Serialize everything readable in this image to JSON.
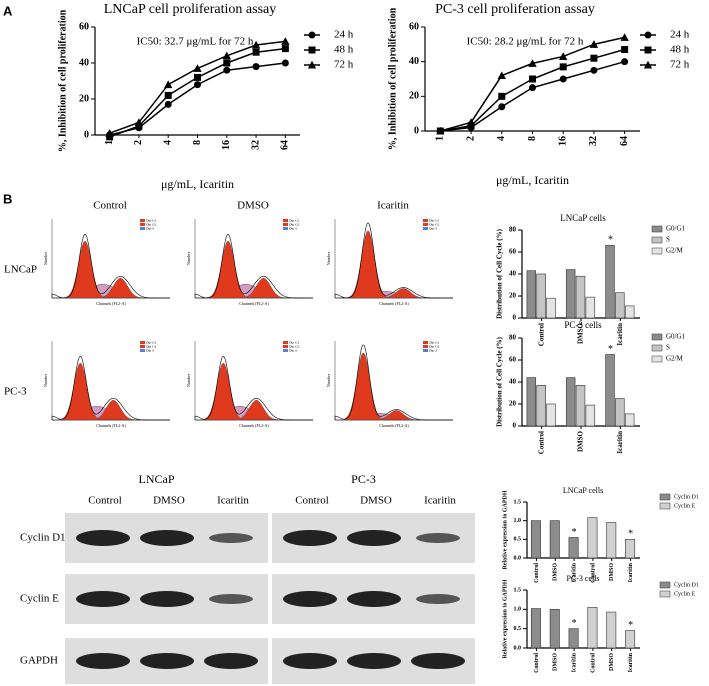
{
  "panel_labels": [
    "A",
    "B"
  ],
  "chart_data": [
    {
      "type": "line",
      "title": "LNCaP cell proliferation assay",
      "annotation": "IC50: 32.7 μg/mL for 72 h",
      "x_label": "μg/mL, Icaritin",
      "y_label": "%, Inhibition of cell proliferation",
      "categories": [
        "1",
        "2",
        "4",
        "8",
        "16",
        "32",
        "64"
      ],
      "ylim": [
        0,
        60
      ],
      "yticks": [
        0,
        20,
        40,
        60
      ],
      "series": [
        {
          "name": "24 h",
          "marker": "circle",
          "color": "#000000",
          "values": [
            0,
            4,
            17,
            28,
            36,
            38,
            40
          ]
        },
        {
          "name": "48 h",
          "marker": "square",
          "color": "#000000",
          "values": [
            -1,
            5,
            22,
            32,
            40,
            46,
            48
          ]
        },
        {
          "name": "72 h",
          "marker": "triangle",
          "color": "#000000",
          "values": [
            1,
            7,
            28,
            37,
            44,
            50,
            52
          ]
        }
      ]
    },
    {
      "type": "line",
      "title": "PC-3 cell proliferation assay",
      "annotation": "IC50: 28.2 μg/mL for 72 h",
      "x_label": "μg/mL, Icaritin",
      "y_label": "%, Inhibition of cell proliferation",
      "categories": [
        "1",
        "2",
        "4",
        "8",
        "16",
        "32",
        "64"
      ],
      "ylim": [
        0,
        60
      ],
      "yticks": [
        0,
        20,
        40,
        60
      ],
      "series": [
        {
          "name": "24 h",
          "marker": "circle",
          "color": "#000000",
          "values": [
            0,
            2,
            14,
            25,
            30,
            35,
            40
          ]
        },
        {
          "name": "48 h",
          "marker": "square",
          "color": "#000000",
          "values": [
            0,
            3,
            20,
            30,
            37,
            42,
            47
          ]
        },
        {
          "name": "72 h",
          "marker": "triangle",
          "color": "#000000",
          "values": [
            0,
            5,
            32,
            39,
            43,
            50,
            54
          ]
        }
      ]
    },
    {
      "type": "bar",
      "title": "LNCaP cells",
      "y_label": "Distribution of Cell Cycle (%)",
      "categories": [
        "Control",
        "DMSO",
        "Icaritin"
      ],
      "ylim": [
        0,
        80
      ],
      "yticks": [
        0,
        20,
        40,
        60,
        80
      ],
      "series": [
        {
          "name": "G0/G1",
          "color": "#8c8c8c",
          "values": [
            43,
            44,
            66
          ],
          "annotations": [
            null,
            null,
            "*"
          ]
        },
        {
          "name": "S",
          "color": "#c4c4c4",
          "values": [
            40,
            38,
            23
          ]
        },
        {
          "name": "G2/M",
          "color": "#e4e4e4",
          "values": [
            18,
            19,
            11
          ]
        }
      ]
    },
    {
      "type": "bar",
      "title": "PC-3 cells",
      "y_label": "Distribution of Cell Cycle (%)",
      "categories": [
        "Control",
        "DMSO",
        "Icaritin"
      ],
      "ylim": [
        0,
        80
      ],
      "yticks": [
        0,
        20,
        40,
        60,
        80
      ],
      "series": [
        {
          "name": "G0/G1",
          "color": "#8c8c8c",
          "values": [
            44,
            44,
            65
          ],
          "annotations": [
            null,
            null,
            "*"
          ]
        },
        {
          "name": "S",
          "color": "#c4c4c4",
          "values": [
            37,
            37,
            25
          ]
        },
        {
          "name": "G2/M",
          "color": "#e4e4e4",
          "values": [
            20,
            19,
            11
          ]
        }
      ]
    },
    {
      "type": "bar",
      "title": "LNCaP cells",
      "y_label": "Relative expression to GAPDH",
      "categories": [
        "Control",
        "DMSO",
        "Icaritin",
        "Control",
        "DMSO",
        "Icaritin"
      ],
      "ylim": [
        0,
        1.5
      ],
      "yticks": [
        {
          "value": 0,
          "label": "0.0"
        },
        0.5,
        {
          "value": 1,
          "label": "1.0"
        },
        1.5
      ],
      "series": [
        {
          "name": "Cyclin D1",
          "color": "#8c8c8c",
          "values": [
            1.0,
            1.0,
            0.55,
            null,
            null,
            null
          ],
          "annotations": [
            null,
            null,
            "*",
            null,
            null,
            null
          ]
        },
        {
          "name": "Cyclin E",
          "color": "#d0d0d0",
          "values": [
            null,
            null,
            null,
            1.08,
            0.95,
            0.5
          ],
          "annotations": [
            null,
            null,
            null,
            null,
            null,
            "*"
          ]
        }
      ]
    },
    {
      "type": "bar",
      "title": "PC-3 cells",
      "y_label": "Relative expression to GAPDH",
      "categories": [
        "Control",
        "DMSO",
        "Icaritin",
        "Control",
        "DMSO",
        "Icaritin"
      ],
      "ylim": [
        0,
        1.5
      ],
      "yticks": [
        {
          "value": 0,
          "label": "0.0"
        },
        0.5,
        {
          "value": 1,
          "label": "1.0"
        },
        1.5
      ],
      "series": [
        {
          "name": "Cyclin D1",
          "color": "#8c8c8c",
          "values": [
            1.02,
            1.0,
            0.5,
            null,
            null,
            null
          ],
          "annotations": [
            null,
            null,
            "*",
            null,
            null,
            null
          ]
        },
        {
          "name": "Cyclin E",
          "color": "#d0d0d0",
          "values": [
            null,
            null,
            null,
            1.05,
            0.93,
            0.45
          ],
          "annotations": [
            null,
            null,
            null,
            null,
            null,
            "*"
          ]
        }
      ]
    }
  ],
  "flow": {
    "columns": [
      "Control",
      "DMSO",
      "Icaritin"
    ],
    "rows": [
      "LNCaP",
      "PC-3"
    ],
    "legend": [
      "Dip G1",
      "Dip G2",
      "Dip S"
    ],
    "x_label": "Channels (FL2-A)",
    "y_label": "Number"
  },
  "blots": {
    "groups": [
      "LNCaP",
      "PC-3"
    ],
    "lanes": [
      "Control",
      "DMSO",
      "Icaritin"
    ],
    "proteins": [
      "Cyclin D1",
      "Cyclin E",
      "GAPDH"
    ]
  }
}
